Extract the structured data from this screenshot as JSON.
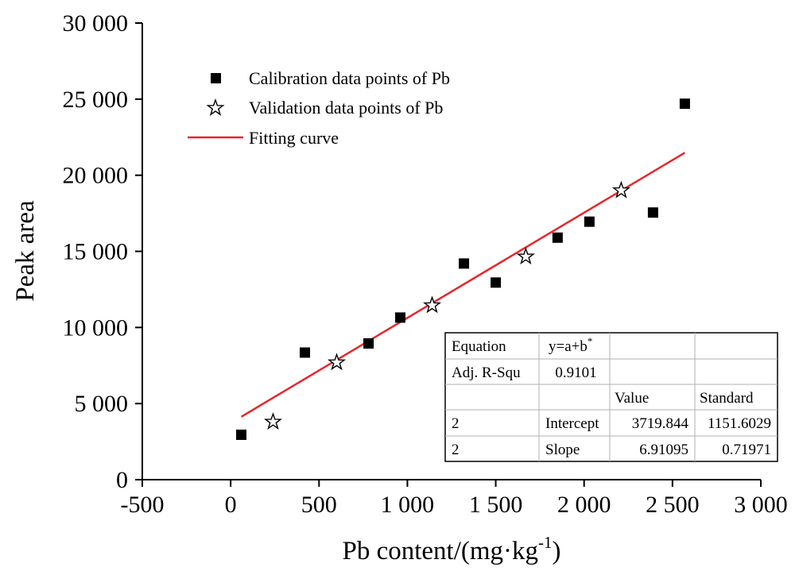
{
  "chart_data": {
    "type": "scatter",
    "xlabel": "Pb content/(mg·kg",
    "xlabel_sup": "-1",
    "xlabel_tail": ")",
    "ylabel": "Peak area",
    "xlim": [
      -500,
      3000
    ],
    "ylim": [
      0,
      30000
    ],
    "xticks": [
      -500,
      0,
      500,
      1000,
      1500,
      2000,
      2500,
      3000
    ],
    "xtick_labels": [
      "-500",
      "0",
      "500",
      "1 000",
      "1 500",
      "2 000",
      "2 500",
      "3 000"
    ],
    "yticks": [
      0,
      5000,
      10000,
      15000,
      20000,
      25000,
      30000
    ],
    "ytick_labels": [
      "0",
      "5 000",
      "10 000",
      "15 000",
      "20 000",
      "25 000",
      "30 000"
    ],
    "grid": false,
    "legend_position": "top-left",
    "series": [
      {
        "name": "Calibration data points of Pb",
        "marker": "square",
        "color": "#000000",
        "x": [
          60,
          420,
          780,
          960,
          1320,
          1500,
          1850,
          2030,
          2390,
          2570
        ],
        "y": [
          2950,
          8350,
          8950,
          10650,
          14200,
          12950,
          15900,
          16950,
          17550,
          24700
        ]
      },
      {
        "name": "Validation data points of Pb",
        "marker": "star",
        "color": "#000000",
        "x": [
          240,
          600,
          1140,
          1670,
          2210
        ],
        "y": [
          3800,
          7700,
          11450,
          14650,
          19000
        ]
      },
      {
        "name": "Fitting curve",
        "type": "line",
        "color": "#e8262a",
        "x": [
          60,
          2570
        ],
        "y": [
          4134,
          21480
        ]
      }
    ],
    "fit_table": {
      "rows": [
        [
          "Equation",
          "y=a+b",
          "",
          ""
        ],
        [
          "Adj. R-Squ",
          "0.9101",
          "",
          ""
        ],
        [
          "",
          "",
          "Value",
          "Standard"
        ],
        [
          "2",
          "Intercept",
          "3719.844",
          "1151.6029"
        ],
        [
          "2",
          "Slope",
          "6.91095",
          "0.71971"
        ]
      ],
      "equation_superscript": "*"
    }
  }
}
